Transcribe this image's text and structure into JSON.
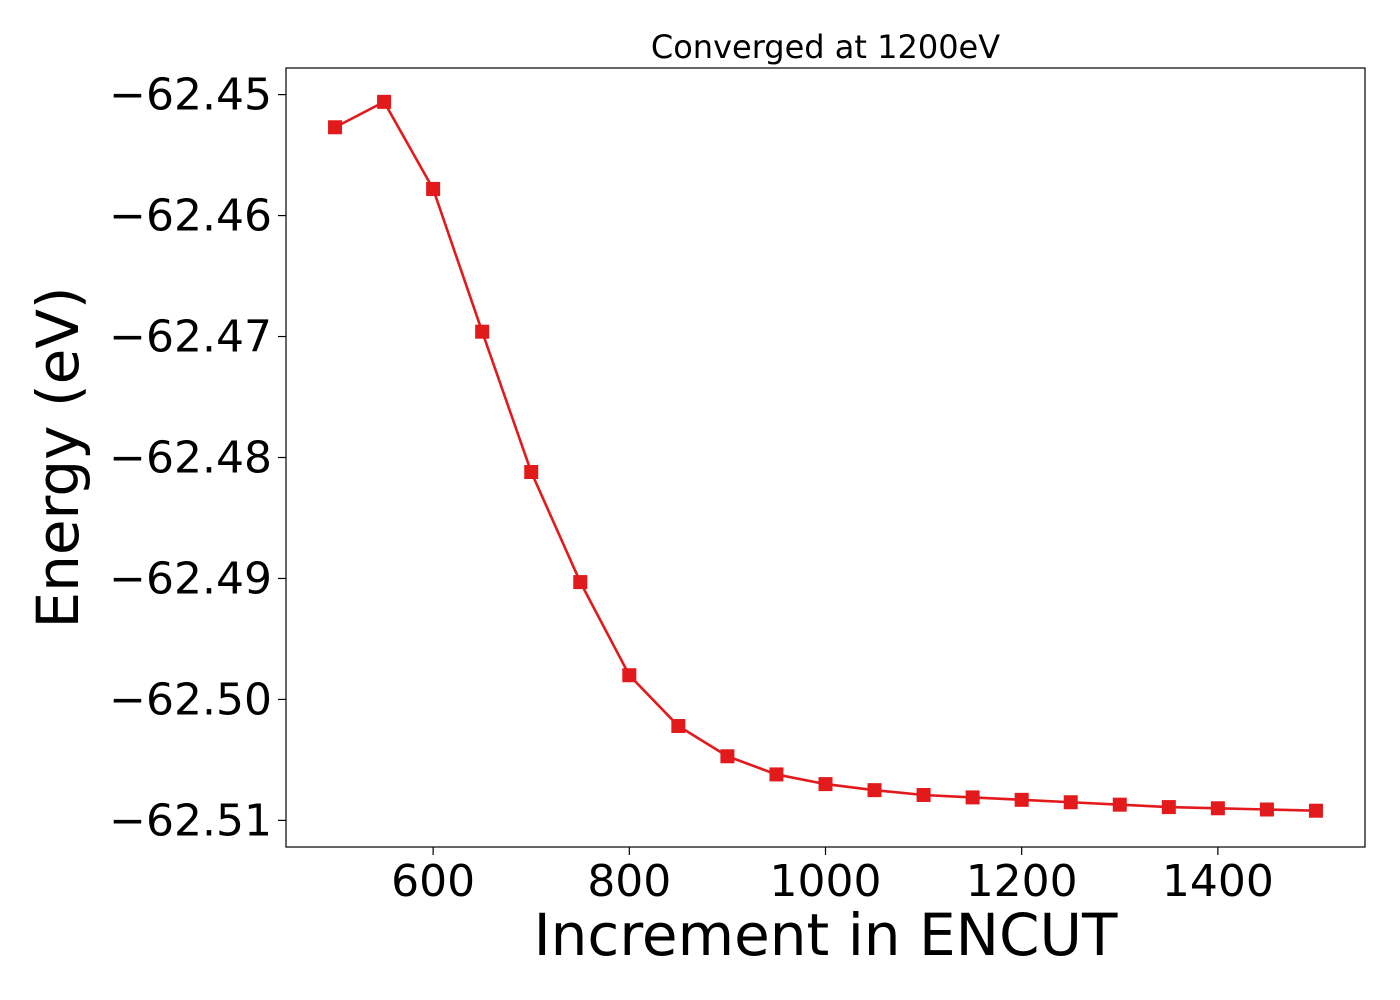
{
  "chart_data": {
    "type": "line",
    "title": "Converged at 1200eV",
    "xlabel": "Increment in ENCUT",
    "ylabel": "Energy (eV)",
    "xlim": [
      450,
      1550
    ],
    "ylim": [
      -62.5122,
      -62.4478
    ],
    "x_ticks": [
      600,
      800,
      1000,
      1200,
      1400
    ],
    "x_tick_labels": [
      "600",
      "800",
      "1000",
      "1200",
      "1400"
    ],
    "y_ticks": [
      -62.45,
      -62.46,
      -62.47,
      -62.48,
      -62.49,
      -62.5,
      -62.51
    ],
    "y_tick_labels": [
      "−62.45",
      "−62.46",
      "−62.47",
      "−62.48",
      "−62.49",
      "−62.50",
      "−62.51"
    ],
    "grid": false,
    "legend": "none",
    "color": "#e31a1c",
    "marker": "square",
    "series": [
      {
        "x": [
          500,
          550,
          600,
          650,
          700,
          750,
          800,
          850,
          900,
          950,
          1000,
          1050,
          1100,
          1150,
          1200,
          1250,
          1300,
          1350,
          1400,
          1450,
          1500
        ],
        "y": [
          -62.4527,
          -62.4506,
          -62.4578,
          -62.4696,
          -62.4812,
          -62.4903,
          -62.498,
          -62.5022,
          -62.5047,
          -62.5062,
          -62.507,
          -62.5075,
          -62.5079,
          -62.5081,
          -62.5083,
          -62.5085,
          -62.5087,
          -62.5089,
          -62.509,
          -62.5091,
          -62.5092
        ]
      }
    ]
  }
}
